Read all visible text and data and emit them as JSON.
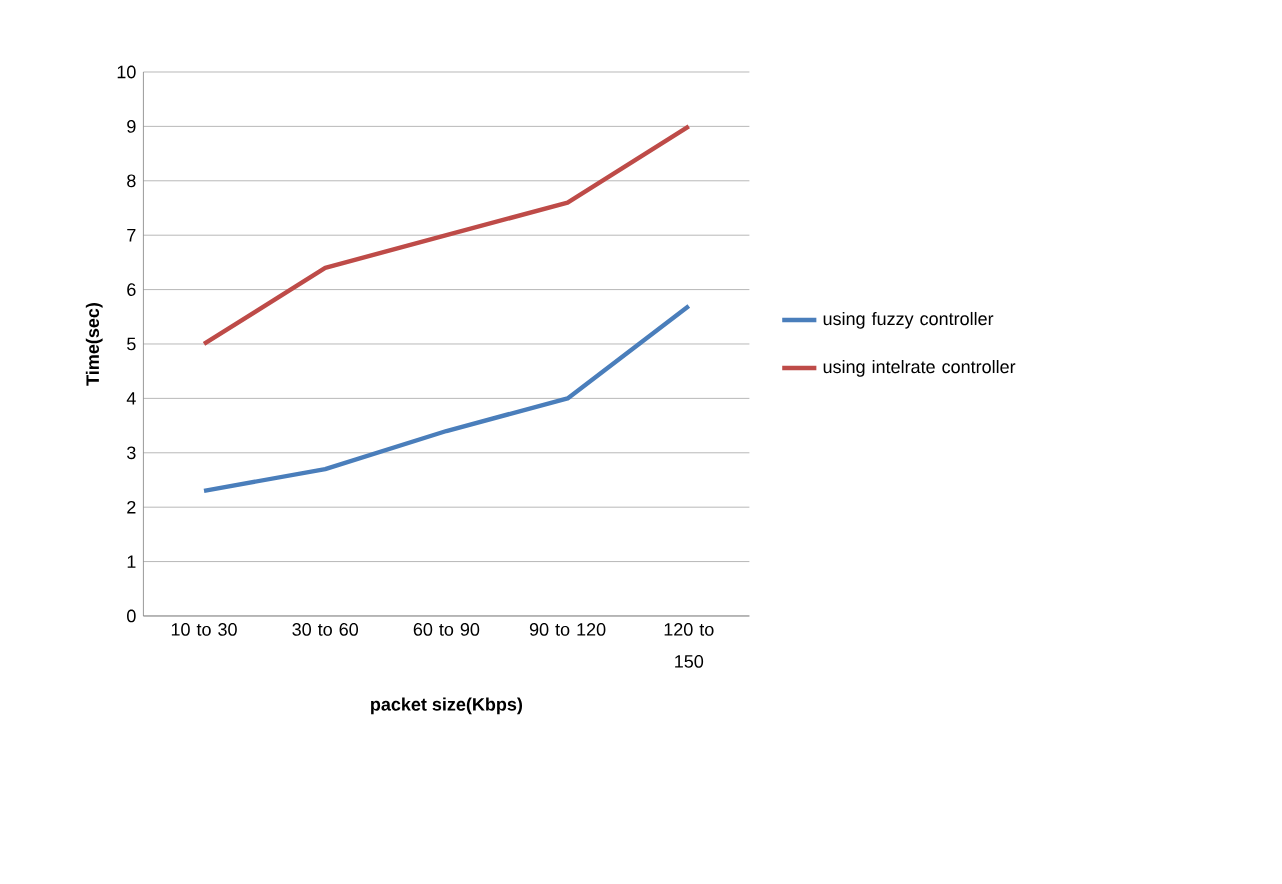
{
  "chart_data": {
    "type": "line",
    "xlabel": "packet size(Kbps)",
    "ylabel": "Time(sec)",
    "categories": [
      "10 to 30",
      "30 to 60",
      "60 to 90",
      "90 to 120",
      "120 to 150"
    ],
    "series": [
      {
        "name": "using fuzzy controller",
        "color": "#4a7ebb",
        "values": [
          2.3,
          2.7,
          3.4,
          4.0,
          5.7
        ]
      },
      {
        "name": "using intelrate controller",
        "color": "#be4b48",
        "values": [
          5.0,
          6.4,
          7.0,
          7.6,
          9.0
        ]
      }
    ],
    "ylim": [
      0,
      10
    ],
    "yticks": [
      0,
      1,
      2,
      3,
      4,
      5,
      6,
      7,
      8,
      9,
      10
    ],
    "grid": "y",
    "legend": "right",
    "marker": "none",
    "line_style": "solid"
  }
}
